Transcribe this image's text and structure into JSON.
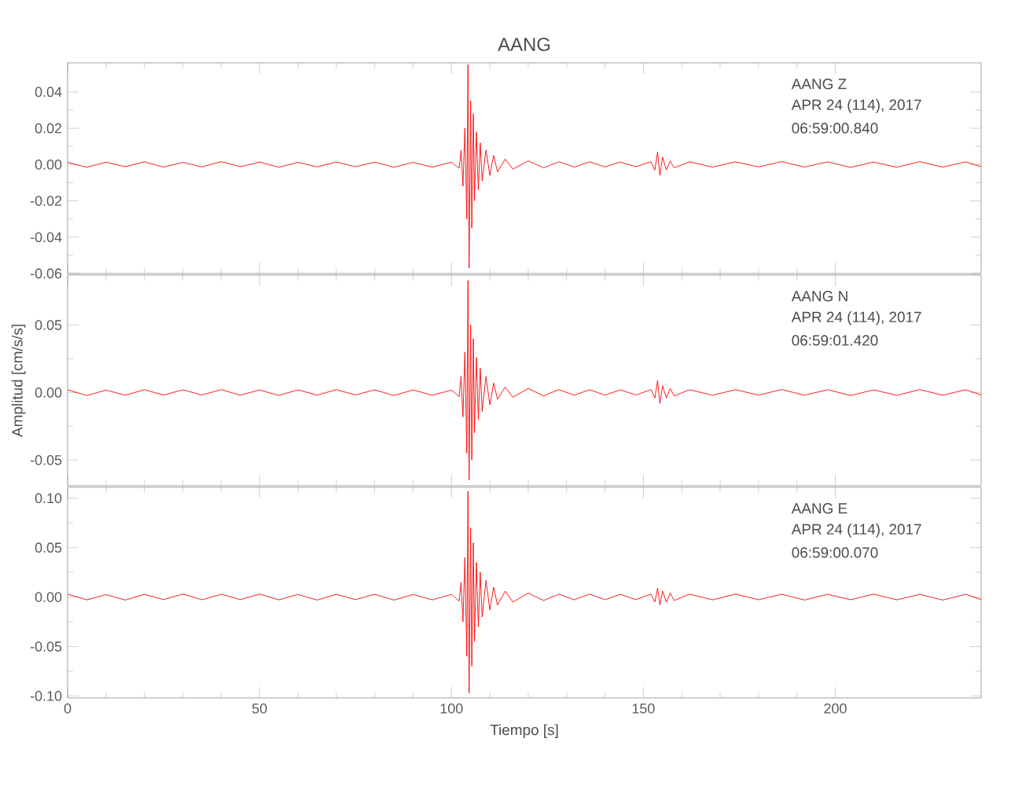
{
  "chart_data": [
    {
      "type": "line",
      "title": "AANG",
      "color": "#ff0000",
      "xlim": [
        0,
        238
      ],
      "ylim": [
        -0.06,
        0.056
      ],
      "xticks": [
        0,
        50,
        100,
        150,
        200
      ],
      "yticks": [
        {
          "value": -0.06,
          "label": "-0.06"
        },
        -0.04,
        -0.02,
        {
          "value": 0,
          "label": "0.00"
        },
        0.02,
        0.04
      ],
      "tick_labels": "y",
      "annotations": [
        "AANG Z",
        "APR 24 (114), 2017",
        "06:59:00.840"
      ],
      "x": [
        0,
        5,
        10,
        15,
        20,
        25,
        30,
        35,
        40,
        45,
        50,
        55,
        60,
        65,
        70,
        75,
        80,
        85,
        90,
        95,
        100,
        102,
        102.5,
        103,
        103.5,
        104,
        104.3,
        104.6,
        105,
        105.3,
        105.7,
        106,
        106.5,
        107,
        107.5,
        108,
        109,
        110,
        111,
        112,
        114,
        116,
        120,
        124,
        128,
        132,
        136,
        140,
        144,
        148,
        152,
        153,
        153.7,
        154.3,
        155,
        156,
        157,
        158,
        162,
        168,
        174,
        180,
        186,
        192,
        198,
        204,
        210,
        216,
        222,
        228,
        234,
        238
      ],
      "values": [
        0.0012,
        -0.0015,
        0.0013,
        -0.0012,
        0.0015,
        -0.0014,
        0.0012,
        -0.0013,
        0.0016,
        -0.0012,
        0.0014,
        -0.0015,
        0.0012,
        -0.0013,
        0.0014,
        -0.0012,
        0.0013,
        -0.0015,
        0.0012,
        -0.0014,
        0.0013,
        -0.002,
        0.008,
        -0.012,
        0.02,
        -0.03,
        0.055,
        -0.057,
        0.035,
        -0.035,
        0.028,
        -0.02,
        0.018,
        -0.014,
        0.012,
        -0.009,
        0.008,
        -0.006,
        0.005,
        -0.004,
        0.003,
        -0.0025,
        0.002,
        -0.0018,
        0.0015,
        -0.0014,
        0.0015,
        -0.0013,
        0.0014,
        -0.0012,
        0.0015,
        -0.003,
        0.007,
        -0.006,
        0.004,
        -0.003,
        0.002,
        -0.0018,
        0.0015,
        -0.0014,
        0.0015,
        -0.0013,
        0.0016,
        -0.0014,
        0.0015,
        -0.0016,
        0.0014,
        -0.0015,
        0.0016,
        -0.0014,
        0.0015,
        -0.0012
      ]
    },
    {
      "type": "line",
      "ylabel": "Amplitud [cm/s/s]",
      "color": "#ff0000",
      "xlim": [
        0,
        238
      ],
      "ylim": [
        -0.069,
        0.087
      ],
      "xticks": [
        0,
        50,
        100,
        150,
        200
      ],
      "yticks": [
        -0.05,
        {
          "value": 0,
          "label": "0.00"
        },
        0.05
      ],
      "tick_labels": "y",
      "annotations": [
        "AANG N",
        "APR 24 (114), 2017",
        "06:59:01.420"
      ],
      "x": [
        0,
        5,
        10,
        15,
        20,
        25,
        30,
        35,
        40,
        45,
        50,
        55,
        60,
        65,
        70,
        75,
        80,
        85,
        90,
        95,
        100,
        102,
        102.5,
        103,
        103.5,
        104,
        104.3,
        104.6,
        105,
        105.3,
        105.7,
        106,
        106.5,
        107,
        107.5,
        108,
        109,
        110,
        111,
        112,
        114,
        116,
        120,
        124,
        128,
        132,
        136,
        140,
        144,
        148,
        152,
        153,
        153.7,
        154.3,
        155,
        156,
        157,
        158,
        162,
        168,
        174,
        180,
        186,
        192,
        198,
        204,
        210,
        216,
        222,
        228,
        234,
        238
      ],
      "values": [
        0.002,
        -0.0022,
        0.0018,
        -0.002,
        0.0021,
        -0.0019,
        0.002,
        -0.0018,
        0.0022,
        -0.002,
        0.0019,
        -0.0021,
        0.002,
        -0.0019,
        0.0021,
        -0.0018,
        0.002,
        -0.0022,
        0.0019,
        -0.002,
        0.0018,
        -0.003,
        0.012,
        -0.018,
        0.03,
        -0.045,
        0.083,
        -0.065,
        0.05,
        -0.05,
        0.04,
        -0.03,
        0.026,
        -0.02,
        0.018,
        -0.014,
        0.012,
        -0.009,
        0.007,
        -0.005,
        0.004,
        -0.0035,
        0.003,
        -0.0025,
        0.0022,
        -0.002,
        0.0021,
        -0.0019,
        0.002,
        -0.0018,
        0.0021,
        -0.004,
        0.009,
        -0.008,
        0.005,
        -0.004,
        0.003,
        -0.0025,
        0.0021,
        -0.002,
        0.0021,
        -0.0019,
        0.0022,
        -0.002,
        0.0021,
        -0.0022,
        0.002,
        -0.0021,
        0.0022,
        -0.002,
        0.0021,
        -0.0018
      ]
    },
    {
      "type": "line",
      "xlabel": "Tiempo [s]",
      "color": "#ff0000",
      "xlim": [
        0,
        238
      ],
      "ylim": [
        -0.102,
        0.111
      ],
      "xticks": [
        0,
        50,
        100,
        150,
        200
      ],
      "yticks": [
        {
          "value": -0.1,
          "label": "-0.10"
        },
        -0.05,
        {
          "value": 0,
          "label": "0.00"
        },
        0.05,
        {
          "value": 0.1,
          "label": "0.10"
        }
      ],
      "annotations": [
        "AANG E",
        "APR 24 (114), 2017",
        "06:59:00.070"
      ],
      "x": [
        0,
        5,
        10,
        15,
        20,
        25,
        30,
        35,
        40,
        45,
        50,
        55,
        60,
        65,
        70,
        75,
        80,
        85,
        90,
        95,
        100,
        102,
        102.5,
        103,
        103.5,
        104,
        104.3,
        104.6,
        105,
        105.3,
        105.7,
        106,
        106.5,
        107,
        107.5,
        108,
        109,
        110,
        111,
        112,
        114,
        116,
        120,
        124,
        128,
        132,
        136,
        140,
        144,
        148,
        152,
        153,
        153.7,
        154.3,
        155,
        156,
        157,
        158,
        162,
        168,
        174,
        180,
        186,
        192,
        198,
        204,
        210,
        216,
        222,
        228,
        234,
        238
      ],
      "values": [
        0.003,
        -0.0028,
        0.0025,
        -0.003,
        0.0027,
        -0.0025,
        0.003,
        -0.0027,
        0.0028,
        -0.0025,
        0.003,
        -0.0028,
        0.0026,
        -0.003,
        0.0027,
        -0.0025,
        0.0028,
        -0.003,
        0.0026,
        -0.0028,
        0.0027,
        -0.004,
        0.015,
        -0.025,
        0.04,
        -0.06,
        0.107,
        -0.097,
        0.07,
        -0.07,
        0.055,
        -0.045,
        0.035,
        -0.03,
        0.025,
        -0.02,
        0.017,
        -0.013,
        0.01,
        -0.008,
        0.006,
        -0.005,
        0.004,
        -0.0035,
        0.003,
        -0.0028,
        0.003,
        -0.0027,
        0.0028,
        -0.0026,
        0.003,
        -0.005,
        0.009,
        -0.008,
        0.006,
        -0.005,
        0.004,
        -0.0035,
        0.003,
        -0.0028,
        0.003,
        -0.0027,
        0.0029,
        -0.003,
        0.0028,
        -0.0027,
        0.003,
        -0.0028,
        0.0027,
        -0.003,
        0.0028,
        -0.0025
      ]
    }
  ]
}
